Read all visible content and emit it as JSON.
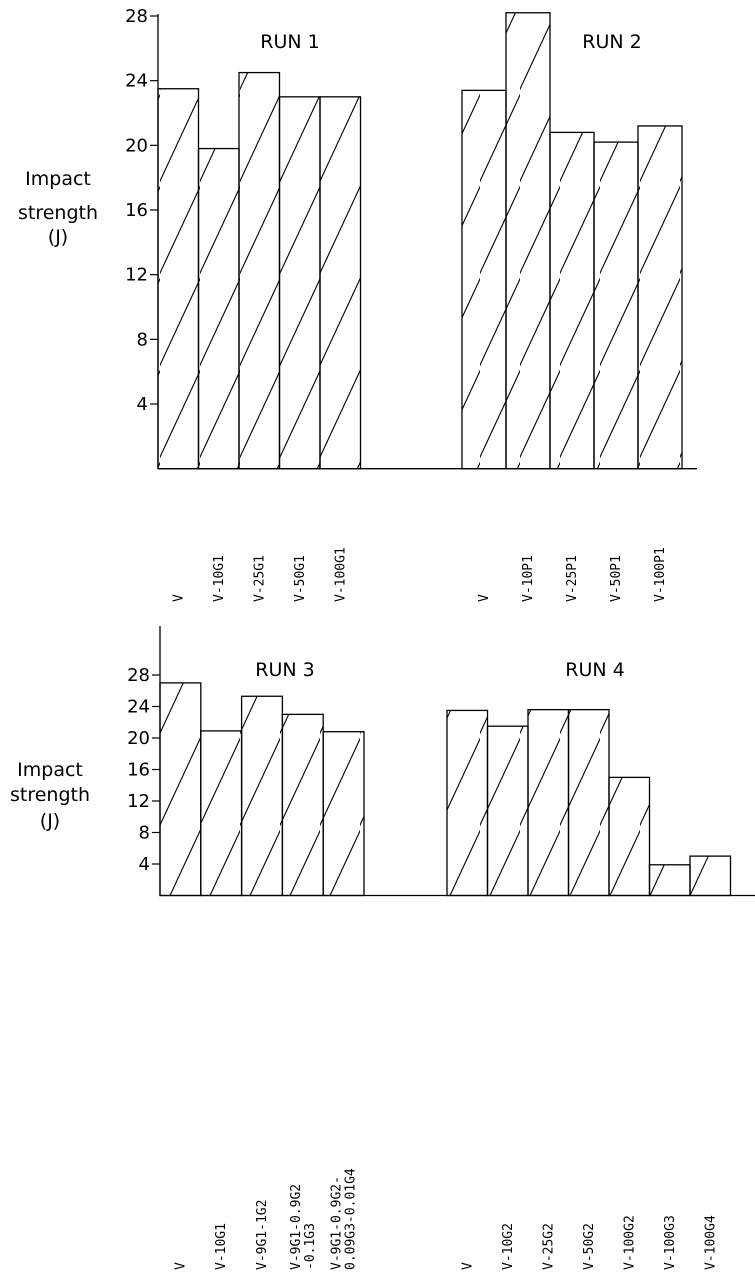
{
  "chart_data": [
    {
      "type": "bar",
      "ylabel": [
        "Impact",
        "strength",
        "(J)"
      ],
      "ylim": [
        0,
        28
      ],
      "yticks": [
        4,
        8,
        12,
        16,
        20,
        24,
        28
      ],
      "groups": [
        {
          "title": "RUN 1",
          "categories": [
            "V",
            "V-10G1",
            "V-25G1",
            "V-50G1",
            "V-100G1"
          ],
          "values": [
            23.5,
            19.8,
            24.5,
            23.0,
            23.0
          ]
        },
        {
          "title": "RUN 2",
          "categories": [
            "V",
            "V-10P1",
            "V-25P1",
            "V-50P1",
            "V-100P1"
          ],
          "values": [
            23.4,
            28.2,
            20.8,
            20.2,
            21.2
          ]
        }
      ]
    },
    {
      "type": "bar",
      "ylabel": [
        "Impact",
        "strength",
        "(J)"
      ],
      "ylim": [
        0,
        28
      ],
      "yticks": [
        4,
        8,
        12,
        16,
        20,
        24,
        28
      ],
      "groups": [
        {
          "title": "RUN 3",
          "categories": [
            "V",
            "V-10G1",
            "V-9G1-1G2",
            [
              "V-9G1-0.9G2",
              "-0.1G3"
            ],
            [
              "V-9G1-0.9G2-",
              "0.09G3-0.01G4"
            ]
          ],
          "values": [
            27.0,
            20.9,
            25.3,
            23.0,
            20.8
          ]
        },
        {
          "title": "RUN 4",
          "categories": [
            "V",
            "V-10G2",
            "V-25G2",
            "V-50G2",
            "V-100G2",
            "V-100G3",
            "V-100G4"
          ],
          "values": [
            23.5,
            21.5,
            23.6,
            23.6,
            15.0,
            3.9,
            5.0
          ]
        }
      ]
    }
  ]
}
